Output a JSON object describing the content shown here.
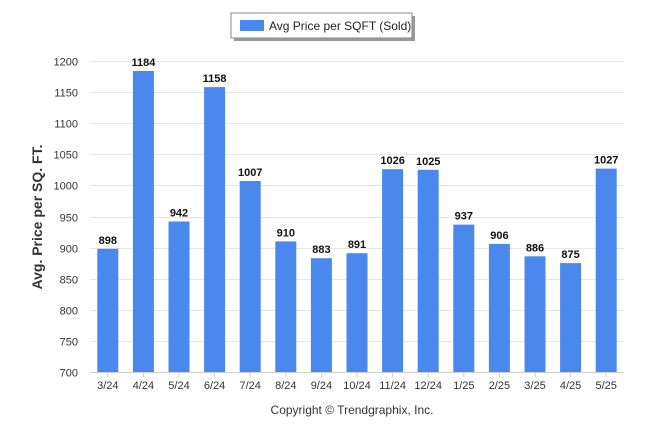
{
  "chart_data": {
    "type": "bar",
    "legend": {
      "label": "Avg Price per SQFT (Sold)",
      "position": "top-center"
    },
    "ylabel": "Avg. Price per SQ. FT.",
    "xlabel": "",
    "categories": [
      "3/24",
      "4/24",
      "5/24",
      "6/24",
      "7/24",
      "8/24",
      "9/24",
      "10/24",
      "11/24",
      "12/24",
      "1/25",
      "2/25",
      "3/25",
      "4/25",
      "5/25"
    ],
    "series": [
      {
        "name": "Avg Price per SQFT (Sold)",
        "values": [
          898,
          1184,
          942,
          1158,
          1007,
          910,
          883,
          891,
          1026,
          1025,
          937,
          906,
          886,
          875,
          1027
        ]
      }
    ],
    "ylim": [
      700,
      1200
    ],
    "yticks": [
      700,
      750,
      800,
      850,
      900,
      950,
      1000,
      1050,
      1100,
      1150,
      1200
    ],
    "grid": true,
    "bar_color": "#4a88ee"
  },
  "footer": {
    "copyright": "Copyright © Trendgraphix, Inc."
  }
}
